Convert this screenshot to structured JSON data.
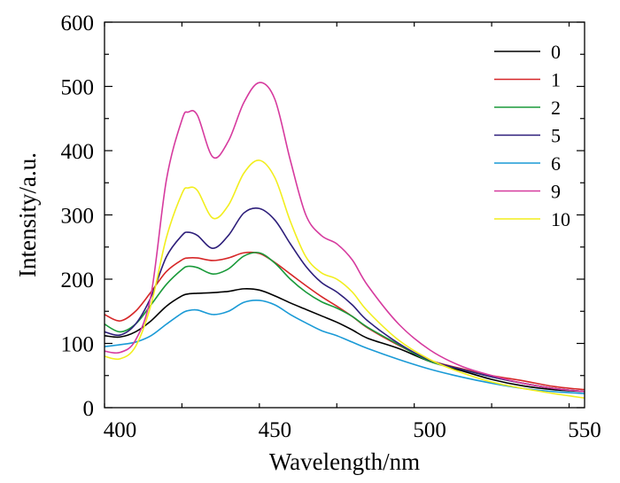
{
  "chart_data": {
    "type": "line",
    "xlabel": "Wavelength/nm",
    "ylabel": "Intensity/a.u.",
    "xlim": [
      395,
      550
    ],
    "ylim": [
      0,
      600
    ],
    "xticks": [
      400,
      450,
      500,
      550
    ],
    "yticks": [
      0,
      100,
      200,
      300,
      400,
      500,
      600
    ],
    "grid": false,
    "legend_position": "top-right",
    "x": [
      395,
      400,
      405,
      410,
      415,
      420,
      422,
      425,
      430,
      435,
      440,
      445,
      450,
      455,
      460,
      465,
      470,
      475,
      480,
      490,
      500,
      510,
      520,
      530,
      540,
      550
    ],
    "series": [
      {
        "name": "0",
        "color": "#000000",
        "values": [
          112,
          110,
          118,
          135,
          158,
          174,
          177,
          178,
          179,
          181,
          185,
          183,
          174,
          163,
          153,
          143,
          133,
          121,
          108,
          92,
          72,
          58,
          44,
          34,
          28,
          25
        ]
      },
      {
        "name": "1",
        "color": "#d62728",
        "values": [
          145,
          135,
          150,
          180,
          212,
          230,
          233,
          233,
          229,
          233,
          241,
          240,
          226,
          208,
          190,
          173,
          158,
          142,
          124,
          97,
          74,
          61,
          50,
          42,
          33,
          28
        ]
      },
      {
        "name": "2",
        "color": "#1a9a3a",
        "values": [
          130,
          118,
          130,
          160,
          192,
          215,
          220,
          218,
          208,
          216,
          236,
          241,
          225,
          200,
          180,
          165,
          155,
          142,
          125,
          98,
          72,
          60,
          48,
          38,
          30,
          25
        ]
      },
      {
        "name": "5",
        "color": "#2d1e7a",
        "values": [
          118,
          113,
          130,
          172,
          235,
          268,
          273,
          268,
          248,
          268,
          303,
          310,
          292,
          255,
          220,
          195,
          180,
          160,
          135,
          100,
          74,
          60,
          48,
          38,
          30,
          25
        ]
      },
      {
        "name": "6",
        "color": "#1a9ad6",
        "values": [
          95,
          98,
          102,
          112,
          130,
          147,
          151,
          152,
          145,
          150,
          164,
          167,
          160,
          145,
          132,
          120,
          112,
          102,
          92,
          75,
          60,
          48,
          38,
          30,
          25,
          22
        ]
      },
      {
        "name": "9",
        "color": "#d63a9e",
        "values": [
          88,
          86,
          105,
          175,
          355,
          448,
          460,
          455,
          390,
          415,
          475,
          506,
          480,
          385,
          300,
          268,
          255,
          230,
          190,
          130,
          90,
          65,
          50,
          38,
          30,
          25
        ]
      },
      {
        "name": "10",
        "color": "#f2ee1d",
        "values": [
          80,
          76,
          95,
          160,
          265,
          333,
          342,
          338,
          295,
          315,
          365,
          385,
          358,
          290,
          235,
          210,
          200,
          180,
          150,
          105,
          75,
          55,
          40,
          30,
          22,
          15
        ]
      }
    ]
  }
}
